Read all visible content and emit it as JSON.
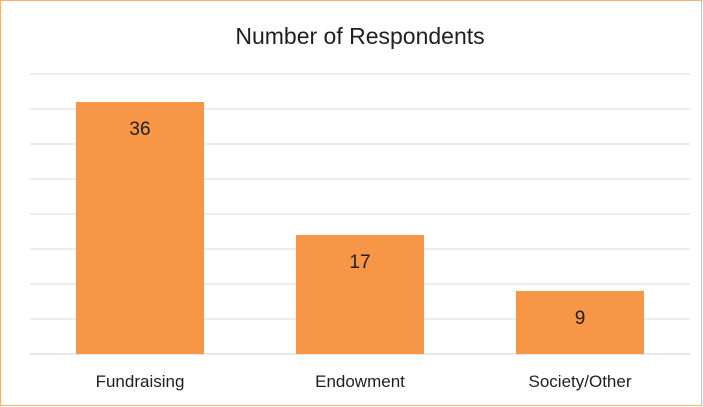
{
  "chart_data": {
    "type": "bar",
    "title": "Number of Respondents",
    "categories": [
      "Fundraising",
      "Endowment",
      "Society/Other"
    ],
    "values": [
      36,
      17,
      9
    ],
    "xlabel": "",
    "ylabel": "",
    "ylim": [
      0,
      40
    ],
    "grid": true,
    "legend": "none",
    "bar_color": "#f79646",
    "gridline_color": "#d9d9d9",
    "border_color": "#f5b37c"
  }
}
